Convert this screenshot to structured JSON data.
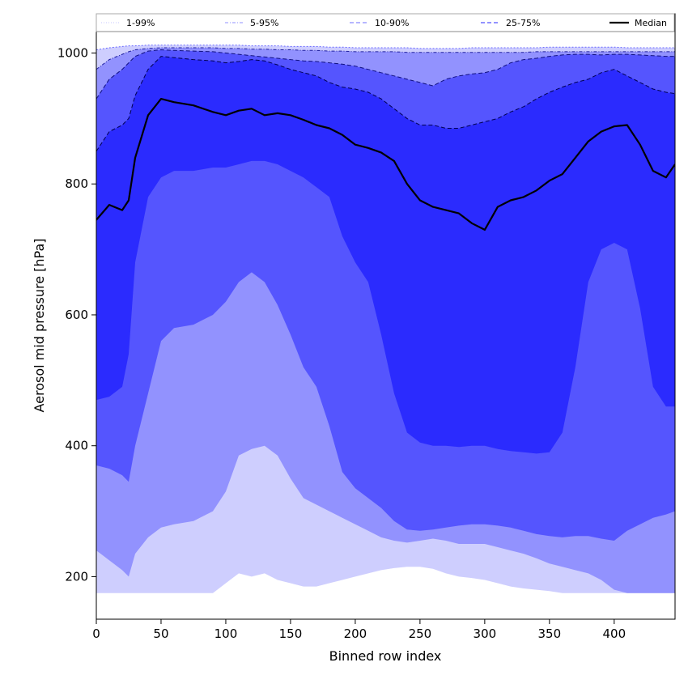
{
  "chart_data": {
    "type": "area",
    "title": "",
    "xlabel": "Binned row index",
    "ylabel": "Aerosol mid pressure [hPa]",
    "xlim": [
      0,
      447
    ],
    "ylim": [
      135,
      1060
    ],
    "xticks": [
      0,
      50,
      100,
      150,
      200,
      250,
      300,
      350,
      400
    ],
    "yticks": [
      200,
      400,
      600,
      800,
      1000
    ],
    "legend_position": "top",
    "legend": [
      {
        "name": "1-99%",
        "style": "dotted",
        "color": "#d0d0ff"
      },
      {
        "name": "5-95%",
        "style": "dashdot",
        "color": "#a6a6ff"
      },
      {
        "name": "10-90%",
        "style": "dashed",
        "color": "#8a8aff"
      },
      {
        "name": "25-75%",
        "style": "dashed",
        "color": "#5050ff"
      },
      {
        "name": "Median",
        "style": "solid",
        "color": "#000000"
      }
    ],
    "colors": {
      "band_1_99": "#cecefe",
      "band_5_95": "#9292fe",
      "band_10_90": "#5555fe",
      "band_25_75": "#2b2bfe",
      "median": "#000000"
    },
    "x": [
      0,
      10,
      20,
      25,
      30,
      40,
      50,
      60,
      75,
      90,
      100,
      110,
      120,
      130,
      140,
      150,
      160,
      170,
      180,
      190,
      200,
      210,
      220,
      230,
      240,
      250,
      260,
      270,
      280,
      290,
      300,
      310,
      320,
      330,
      340,
      350,
      360,
      370,
      380,
      390,
      400,
      410,
      420,
      430,
      440,
      447
    ],
    "series": [
      {
        "name": "p1",
        "values": [
          175,
          175,
          175,
          175,
          175,
          175,
          175,
          175,
          175,
          175,
          190,
          205,
          200,
          205,
          195,
          190,
          185,
          185,
          190,
          195,
          200,
          205,
          210,
          213,
          215,
          215,
          212,
          205,
          200,
          198,
          195,
          190,
          185,
          182,
          180,
          178,
          175,
          175,
          175,
          175,
          175,
          175,
          175,
          175,
          175,
          175
        ]
      },
      {
        "name": "p5",
        "values": [
          240,
          225,
          210,
          200,
          235,
          260,
          275,
          280,
          285,
          300,
          330,
          385,
          395,
          400,
          385,
          350,
          320,
          310,
          300,
          290,
          280,
          270,
          260,
          255,
          252,
          255,
          258,
          255,
          250,
          250,
          250,
          245,
          240,
          235,
          228,
          220,
          215,
          210,
          205,
          195,
          180,
          175,
          175,
          175,
          175,
          175
        ]
      },
      {
        "name": "p10",
        "values": [
          370,
          365,
          355,
          345,
          400,
          480,
          560,
          580,
          585,
          600,
          620,
          650,
          665,
          650,
          615,
          570,
          520,
          490,
          430,
          360,
          335,
          320,
          305,
          285,
          272,
          270,
          272,
          275,
          278,
          280,
          280,
          278,
          275,
          270,
          265,
          262,
          260,
          262,
          262,
          258,
          255,
          270,
          280,
          290,
          295,
          300
        ]
      },
      {
        "name": "p25",
        "values": [
          470,
          475,
          490,
          540,
          680,
          780,
          810,
          820,
          820,
          825,
          825,
          830,
          835,
          835,
          830,
          820,
          810,
          795,
          780,
          720,
          680,
          650,
          570,
          480,
          420,
          405,
          400,
          400,
          398,
          400,
          400,
          395,
          392,
          390,
          388,
          390,
          420,
          520,
          650,
          700,
          710,
          700,
          610,
          490,
          460,
          460
        ]
      },
      {
        "name": "median",
        "values": [
          745,
          768,
          760,
          775,
          840,
          905,
          930,
          925,
          920,
          910,
          905,
          912,
          915,
          905,
          908,
          905,
          898,
          890,
          885,
          875,
          860,
          855,
          848,
          835,
          800,
          775,
          765,
          760,
          755,
          740,
          730,
          765,
          775,
          780,
          790,
          805,
          815,
          840,
          865,
          880,
          888,
          890,
          860,
          820,
          810,
          830
        ]
      },
      {
        "name": "p75",
        "values": [
          850,
          880,
          890,
          900,
          935,
          975,
          995,
          993,
          990,
          988,
          985,
          987,
          990,
          988,
          982,
          975,
          970,
          965,
          955,
          948,
          945,
          940,
          930,
          915,
          900,
          890,
          890,
          885,
          885,
          890,
          895,
          900,
          910,
          918,
          930,
          940,
          948,
          955,
          960,
          970,
          975,
          965,
          955,
          945,
          940,
          938
        ]
      },
      {
        "name": "p90",
        "values": [
          930,
          960,
          975,
          985,
          995,
          1003,
          1005,
          1004,
          1003,
          1002,
          1000,
          998,
          996,
          994,
          992,
          990,
          988,
          987,
          985,
          983,
          980,
          975,
          970,
          965,
          960,
          955,
          950,
          960,
          965,
          968,
          970,
          975,
          985,
          990,
          992,
          995,
          997,
          998,
          998,
          997,
          998,
          998,
          997,
          996,
          995,
          995
        ]
      },
      {
        "name": "p95",
        "values": [
          975,
          990,
          998,
          1002,
          1005,
          1007,
          1008,
          1008,
          1008,
          1008,
          1007,
          1007,
          1006,
          1006,
          1005,
          1005,
          1004,
          1004,
          1003,
          1003,
          1002,
          1002,
          1002,
          1002,
          1001,
          1001,
          1001,
          1001,
          1001,
          1001,
          1001,
          1001,
          1001,
          1001,
          1002,
          1002,
          1002,
          1002,
          1002,
          1002,
          1002,
          1002,
          1002,
          1002,
          1002,
          1002
        ]
      },
      {
        "name": "p99",
        "values": [
          1005,
          1008,
          1010,
          1011,
          1011,
          1012,
          1012,
          1012,
          1012,
          1012,
          1012,
          1012,
          1011,
          1011,
          1011,
          1010,
          1010,
          1010,
          1009,
          1009,
          1008,
          1008,
          1008,
          1008,
          1008,
          1007,
          1007,
          1007,
          1007,
          1008,
          1008,
          1008,
          1008,
          1008,
          1008,
          1009,
          1009,
          1009,
          1009,
          1009,
          1009,
          1008,
          1008,
          1008,
          1008,
          1008
        ]
      }
    ]
  }
}
